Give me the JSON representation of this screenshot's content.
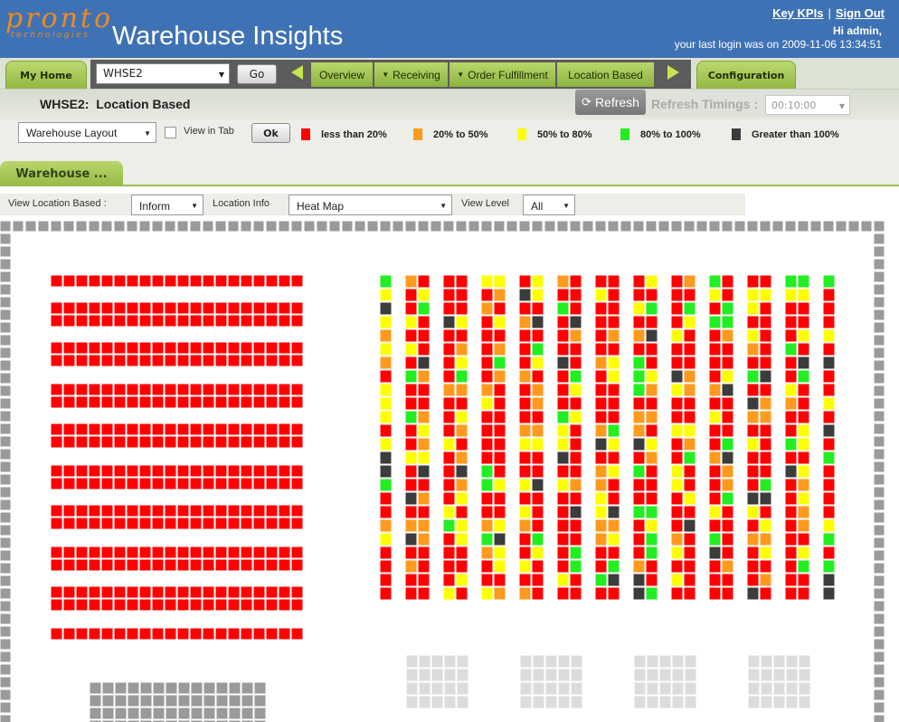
{
  "header": {
    "logo_text": "pronto",
    "logo_subtext": "technologies",
    "app_title": "Warehouse Insights",
    "links": [
      "Key KPIs",
      "Sign Out"
    ],
    "separator": "|",
    "greeting": "Hi admin,",
    "last_login": "your last login was on 2009-11-06 13:34:51"
  },
  "nav": {
    "home_label": "My Home",
    "warehouse_value": "WHSE2",
    "go_label": "Go",
    "items": [
      {
        "label": "Overview",
        "has_dropdown": false
      },
      {
        "label": "Receiving",
        "has_dropdown": true
      },
      {
        "label": "Order Fulfillment",
        "has_dropdown": true
      },
      {
        "label": "Location Based",
        "has_dropdown": false
      }
    ],
    "config_label": "Configuration"
  },
  "subheader": {
    "warehouse": "WHSE2:",
    "view": "Location Based",
    "refresh_label": "Refresh",
    "timings_label": "Refresh Timings :",
    "timings_value": "00:10:00"
  },
  "controls": {
    "layout_value": "Warehouse Layout",
    "view_in_tab_label": "View in Tab",
    "ok_label": "Ok"
  },
  "legend": [
    {
      "label": "less than 20%",
      "color": "#ff0000"
    },
    {
      "label": "20% to 50%",
      "color": "#ff9a1e"
    },
    {
      "label": "50% to 80%",
      "color": "#ffff00"
    },
    {
      "label": "80% to 100%",
      "color": "#22ee22"
    },
    {
      "label": "Greater than 100%",
      "color": "#3c3c3c"
    }
  ],
  "tab": {
    "label": "Warehouse ..."
  },
  "filters": {
    "view_location_label": "View Location Based :",
    "view_location_value": "Inform",
    "location_info_label": "Location Info",
    "location_info_value": "Heat Map",
    "view_level_label": "View Level",
    "view_level_value": "All"
  },
  "colors": {
    "header_blue": "#3f72b4",
    "accent_green": "#9cbf55",
    "wall_gray": "#9a9a9a",
    "dock_gray": "#dcdcdc"
  }
}
